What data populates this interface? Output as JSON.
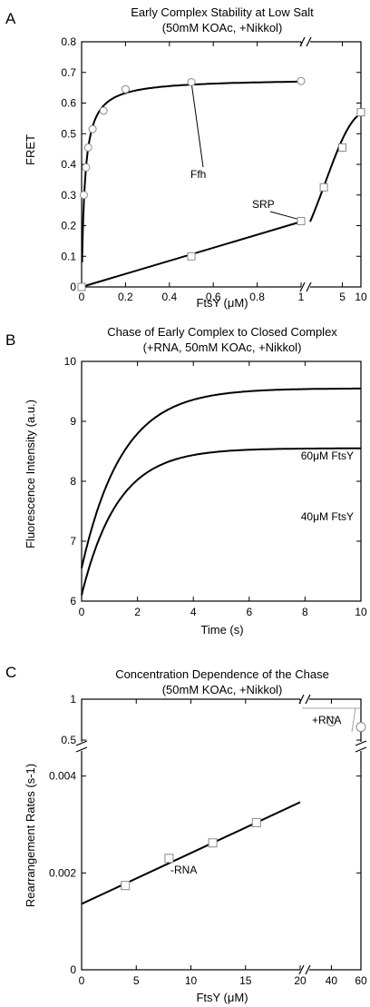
{
  "chart_data": [
    {
      "panel": "A",
      "type": "scatter",
      "title": "Early Complex Stability at Low Salt",
      "subtitle": "(50mM KOAc, +Nikkol)",
      "xlabel": "FtsY (μM)",
      "ylabel": "FRET",
      "x_scale": "broken: linear 0–1 then log 1–10",
      "xticks": [
        "0",
        "0.2",
        "0.4",
        "0.6",
        "0.8",
        "1",
        "5",
        "10"
      ],
      "yticks": [
        "0",
        "0.1",
        "0.2",
        "0.3",
        "0.4",
        "0.5",
        "0.6",
        "0.7",
        "0.8"
      ],
      "ylim": [
        0,
        0.8
      ],
      "series": [
        {
          "name": "Ffh",
          "marker": "circle",
          "x": [
            0.01,
            0.02,
            0.03,
            0.05,
            0.1,
            0.2,
            0.5,
            1
          ],
          "y": [
            0.3,
            0.39,
            0.455,
            0.515,
            0.575,
            0.645,
            0.668,
            0.672
          ]
        },
        {
          "name": "SRP",
          "marker": "square",
          "x": [
            0,
            0.5,
            1,
            2.5,
            5,
            10
          ],
          "y": [
            0,
            0.1,
            0.215,
            0.325,
            0.455,
            0.57
          ]
        }
      ]
    },
    {
      "panel": "B",
      "type": "line",
      "title": "Chase of Early Complex to Closed Complex",
      "subtitle": "(+RNA, 50mM KOAc, +Nikkol)",
      "xlabel": "Time (s)",
      "ylabel": "Fluorescence Intensity (a.u.)",
      "xticks": [
        "0",
        "2",
        "4",
        "6",
        "8",
        "10"
      ],
      "yticks": [
        "6",
        "7",
        "8",
        "9",
        "10"
      ],
      "xlim": [
        0,
        10
      ],
      "ylim": [
        6,
        10
      ],
      "series": [
        {
          "name": "60μM FtsY",
          "y0": 6.55,
          "yinf": 9.55,
          "tau": 1.45
        },
        {
          "name": "40μM FtsY",
          "y0": 6.1,
          "yinf": 8.55,
          "tau": 1.3
        }
      ]
    },
    {
      "panel": "C",
      "type": "scatter",
      "title": "Concentration Dependence of the Chase",
      "subtitle": "(50mM KOAc, +Nikkol)",
      "xlabel": "FtsY (μM)",
      "ylabel": "Rearrangement Rates (s-1)",
      "xticks": [
        "0",
        "5",
        "10",
        "15",
        "20",
        "40",
        "60"
      ],
      "yticks_low": [
        "0",
        "0.002",
        "0.004"
      ],
      "yticks_high": [
        "0.5",
        "1"
      ],
      "series": [
        {
          "name": "-RNA",
          "marker": "square",
          "x": [
            4,
            8,
            12,
            16
          ],
          "y": [
            0.00174,
            0.0023,
            0.00262,
            0.00304
          ],
          "fit": {
            "slope": 0.000105,
            "intercept": 0.00136
          }
        },
        {
          "name": "+RNA",
          "marker": "circle",
          "x": [
            40,
            60
          ],
          "y": [
            0.73,
            0.66
          ]
        }
      ]
    }
  ]
}
